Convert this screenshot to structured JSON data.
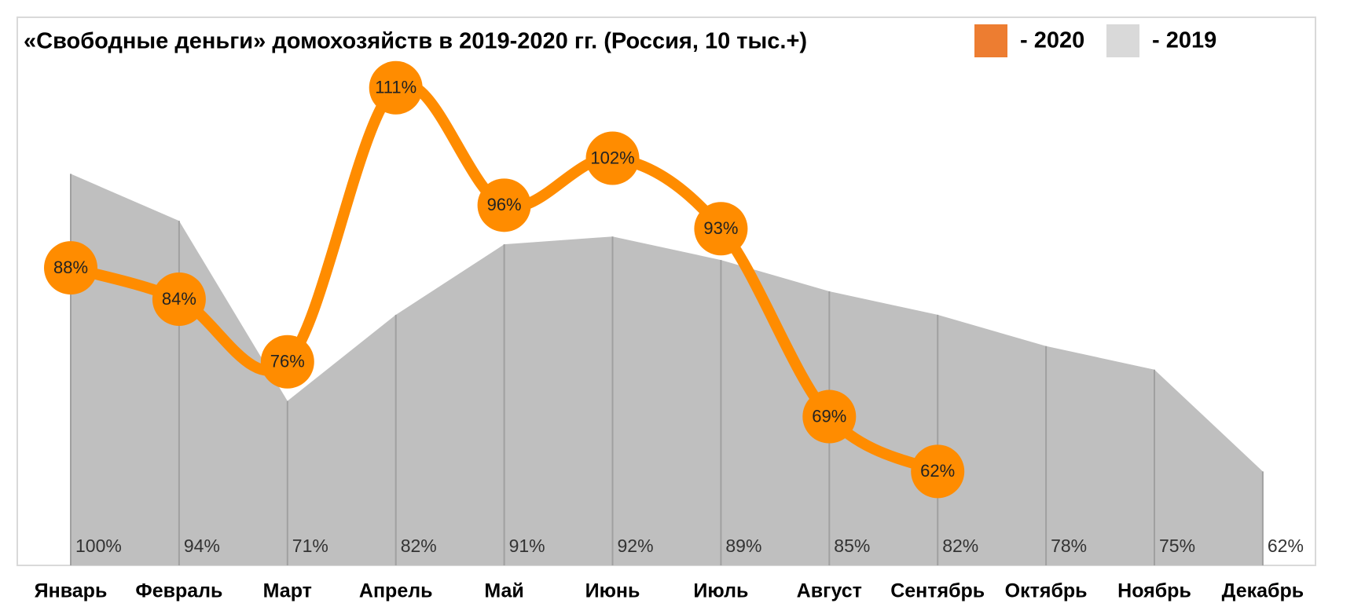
{
  "chart_data": {
    "type": "line",
    "title": "«Свободные деньги» домохозяйств в 2019-2020 гг. (Россия, 10 тыс.+)",
    "categories": [
      "Январь",
      "Февраль",
      "Март",
      "Апрель",
      "Май",
      "Июнь",
      "Июль",
      "Август",
      "Сентябрь",
      "Октябрь",
      "Ноябрь",
      "Декабрь"
    ],
    "ylim": [
      50,
      120
    ],
    "series": [
      {
        "name": "- 2020",
        "color": "#ff8c00",
        "legend_color": "#ed7d31",
        "kind": "line",
        "values": [
          88,
          84,
          76,
          111,
          96,
          102,
          93,
          69,
          62,
          null,
          null,
          null
        ],
        "value_labels": [
          "88%",
          "84%",
          "76%",
          "111%",
          "96%",
          "102%",
          "93%",
          "69%",
          "62%",
          null,
          null,
          null
        ]
      },
      {
        "name": "- 2019",
        "color": "#bfbfbf",
        "legend_color": "#d9d9d9",
        "kind": "area",
        "values": [
          100,
          94,
          71,
          82,
          91,
          92,
          89,
          85,
          82,
          78,
          75,
          62
        ],
        "value_labels": [
          "100%",
          "94%",
          "71%",
          "82%",
          "91%",
          "92%",
          "89%",
          "85%",
          "82%",
          "78%",
          "75%",
          "62%"
        ]
      }
    ],
    "legend": "top-right"
  }
}
